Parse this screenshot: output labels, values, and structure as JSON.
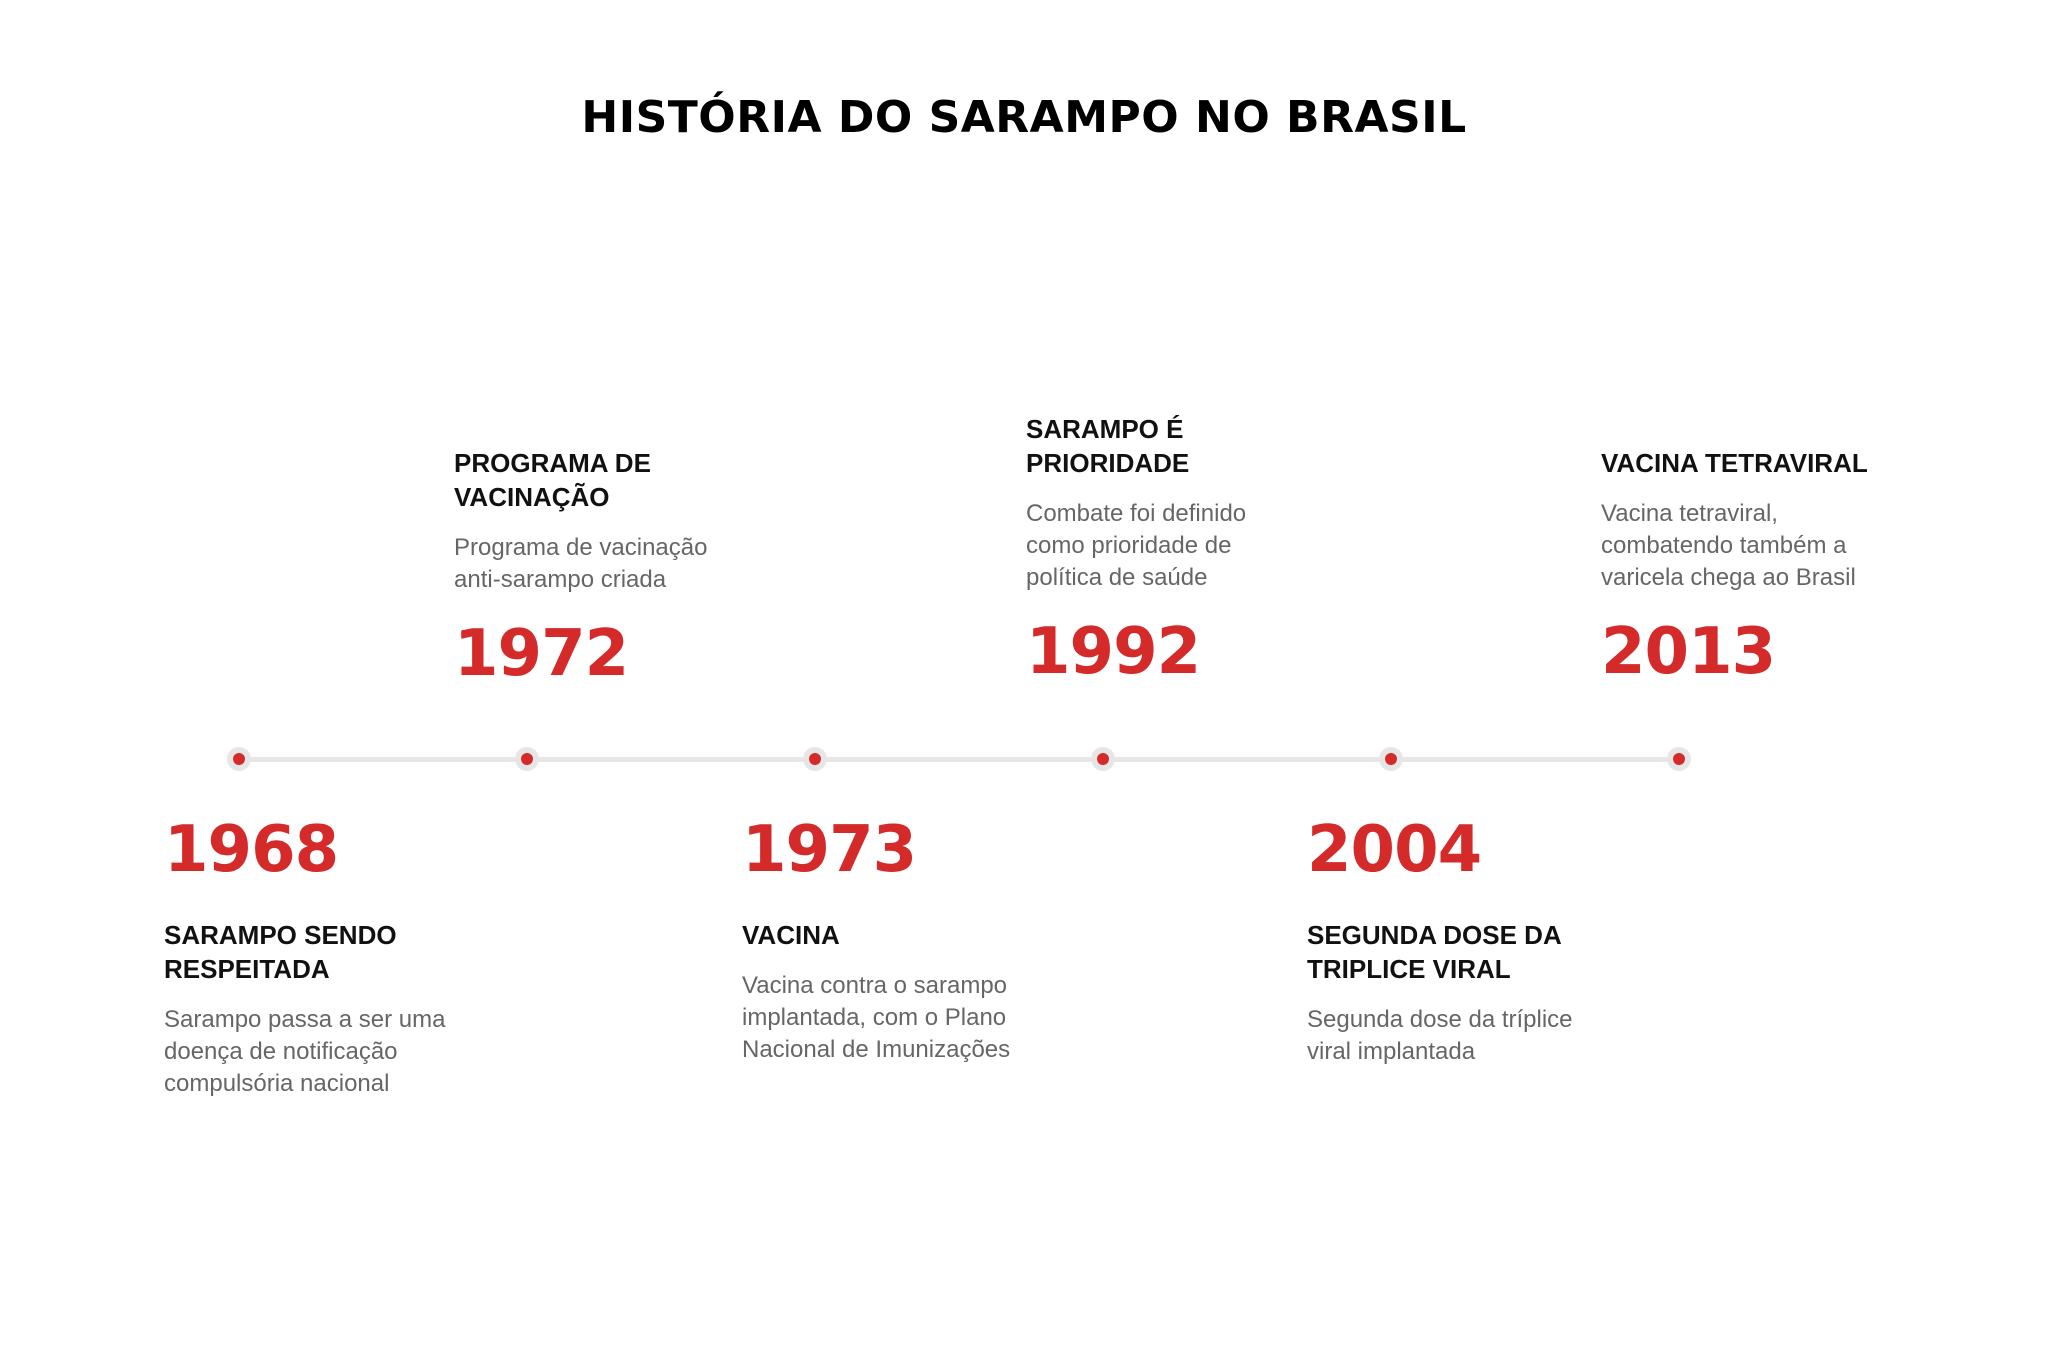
{
  "title": "HISTÓRIA DO SARAMPO NO BRASIL",
  "colors": {
    "accent": "#d42a2a",
    "line": "#e6e6e6",
    "heading": "#111111",
    "description": "#666666"
  },
  "events": [
    {
      "year": "1968",
      "heading_lines": [
        "SARAMPO SENDO",
        "RESPEITADA"
      ],
      "description_lines": [
        "Sarampo passa a ser uma",
        "doença de notificação",
        "compulsória nacional"
      ]
    },
    {
      "year": "1972",
      "heading_lines": [
        "PROGRAMA DE",
        "VACINAÇÃO"
      ],
      "description_lines": [
        "Programa de vacinação",
        "anti-sarampo criada"
      ]
    },
    {
      "year": "1973",
      "heading_lines": [
        "VACINA"
      ],
      "description_lines": [
        "Vacina contra o sarampo",
        "implantada, com o Plano",
        "Nacional de Imunizações"
      ]
    },
    {
      "year": "1992",
      "heading_lines": [
        "SARAMPO É",
        "PRIORIDADE"
      ],
      "description_lines": [
        "Combate foi definido",
        "como prioridade de",
        "política de saúde"
      ]
    },
    {
      "year": "2004",
      "heading_lines": [
        "SEGUNDA DOSE DA",
        "TRIPLICE VIRAL"
      ],
      "description_lines": [
        "Segunda dose da tríplice",
        "viral implantada"
      ]
    },
    {
      "year": "2013",
      "heading_lines": [
        "VACINA TETRAVIRAL"
      ],
      "description_lines": [
        "Vacina tetraviral,",
        "combatendo também a",
        "varicela chega ao Brasil"
      ]
    }
  ]
}
